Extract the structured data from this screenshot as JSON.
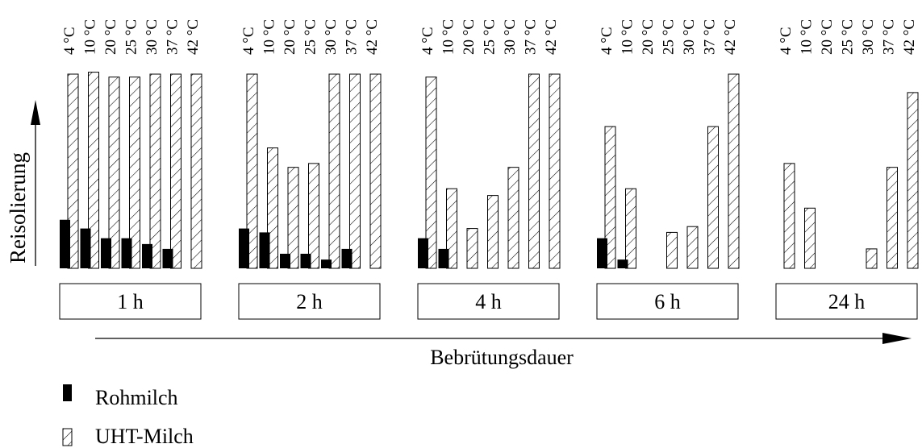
{
  "colors": {
    "raw": "#000000",
    "uht_stroke": "#000000",
    "background": "#ffffff"
  },
  "chart_data": {
    "type": "bar",
    "y_axis_label": "Reisolierung",
    "x_axis_label": "Bebrütungsdauer",
    "temperatures": [
      "4 °C",
      "10 °C",
      "20 °C",
      "25 °C",
      "30 °C",
      "37 °C",
      "42 °C"
    ],
    "ylim": [
      0,
      1
    ],
    "grid": false,
    "legend_position": "bottom-left",
    "groups": [
      {
        "label": "1 h",
        "rohmilch": [
          0.25,
          0.205,
          0.155,
          0.155,
          0.125,
          0.1,
          0
        ],
        "uht_milch": [
          1.0,
          1.01,
          0.985,
          0.985,
          1.0,
          1.0,
          1.0
        ]
      },
      {
        "label": "2 h",
        "rohmilch": [
          0.205,
          0.185,
          0.075,
          0.075,
          0.045,
          0.1,
          0
        ],
        "uht_milch": [
          1.0,
          0.62,
          0.52,
          0.54,
          1.0,
          1.0,
          1.0
        ]
      },
      {
        "label": "4 h",
        "rohmilch": [
          0.155,
          0.1,
          0,
          0,
          0,
          0,
          0
        ],
        "uht_milch": [
          0.985,
          0.41,
          0.205,
          0.375,
          0.52,
          1.0,
          1.0
        ]
      },
      {
        "label": "6 h",
        "rohmilch": [
          0.155,
          0.045,
          0,
          0,
          0,
          0,
          0
        ],
        "uht_milch": [
          0.73,
          0.41,
          0,
          0.185,
          0.215,
          0.73,
          1.0
        ]
      },
      {
        "label": "24 h",
        "rohmilch": [
          0,
          0,
          0,
          0,
          0,
          0,
          0
        ],
        "uht_milch": [
          0.54,
          0.31,
          0,
          0,
          0.1,
          0.52,
          0.905
        ]
      }
    ],
    "series": [
      {
        "name": "Rohmilch",
        "key": "rohmilch"
      },
      {
        "name": "UHT-Milch",
        "key": "uht_milch"
      }
    ]
  }
}
